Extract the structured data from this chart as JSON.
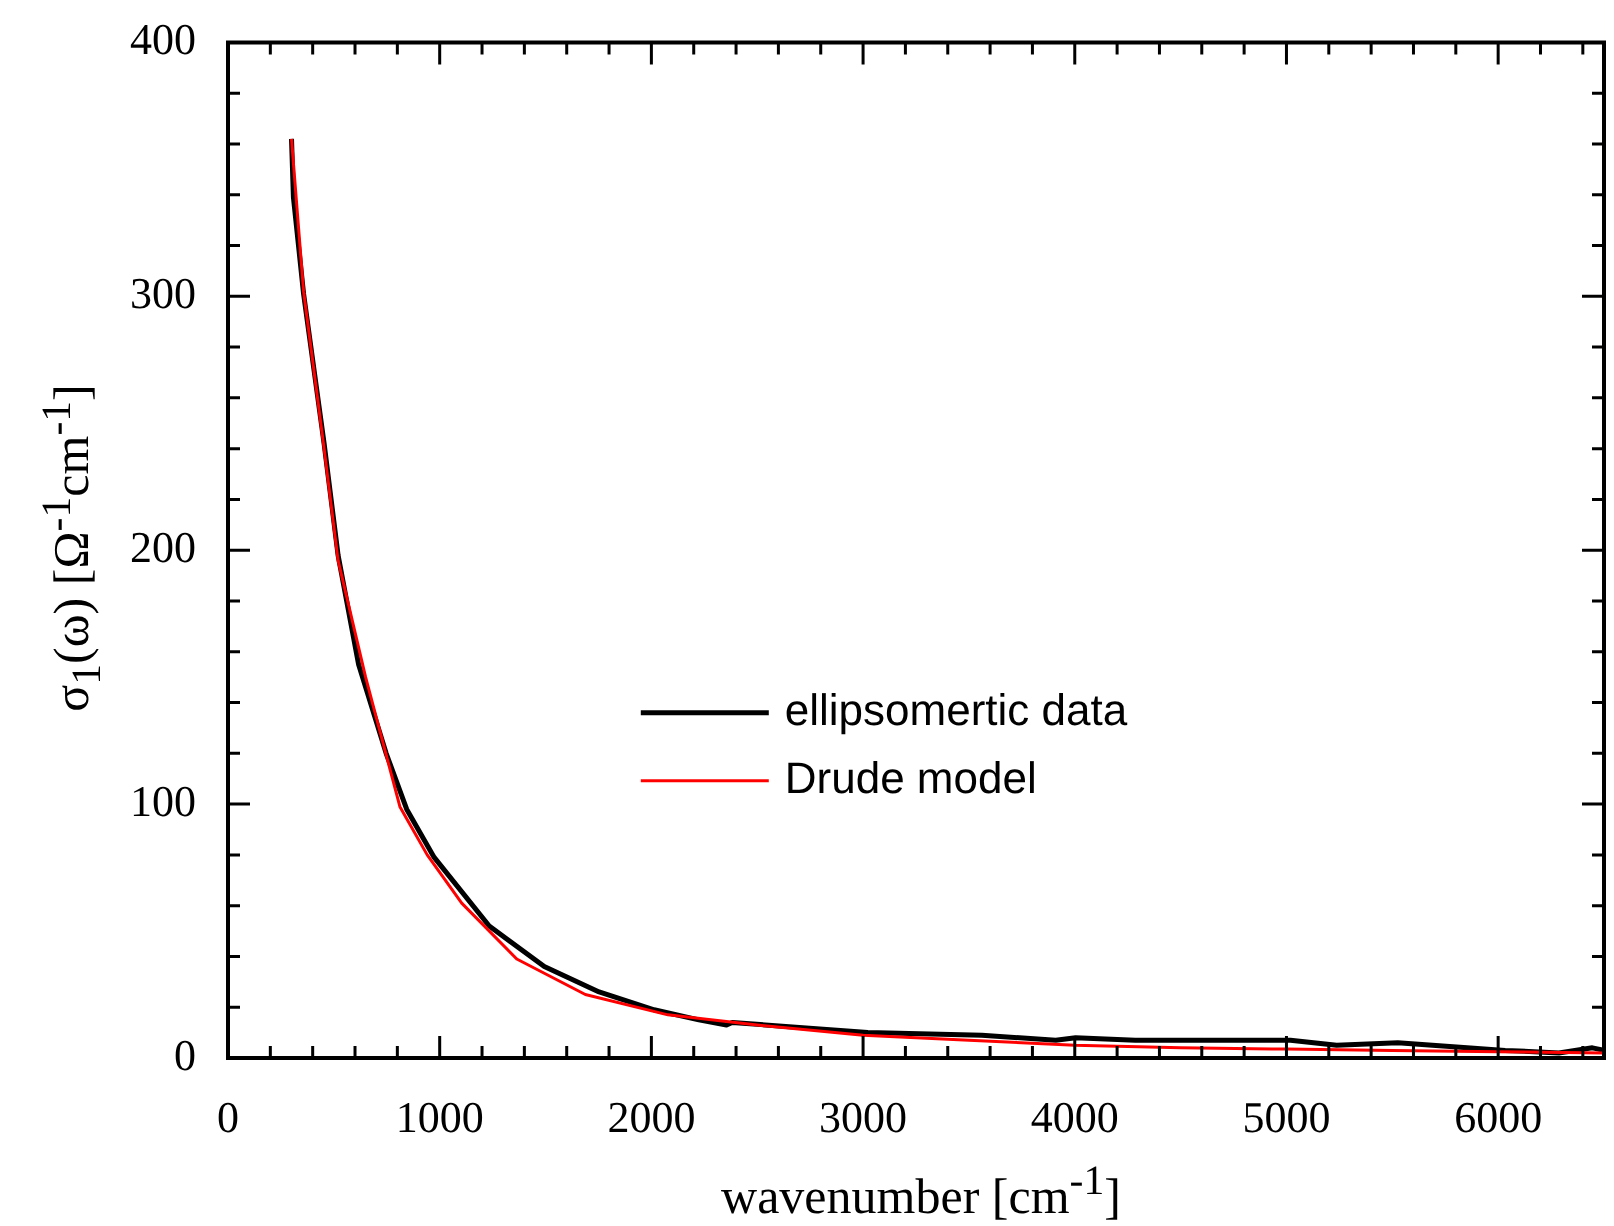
{
  "chart_data": {
    "type": "line",
    "xlabel": "wavenumber [cm$^{-1}$]",
    "ylabel": "σ$_{1}$(ω) [Ω$^{-1}$cm$^{-1}$]",
    "xlim": [
      0,
      6500
    ],
    "ylim": [
      0,
      400
    ],
    "xticks": [
      0,
      {
        "value": 200,
        "label": null
      },
      {
        "value": 400,
        "label": null
      },
      {
        "value": 600,
        "label": null
      },
      {
        "value": 800,
        "label": null
      },
      1000,
      {
        "value": 1200,
        "label": null
      },
      {
        "value": 1400,
        "label": null
      },
      {
        "value": 1600,
        "label": null
      },
      {
        "value": 1800,
        "label": null
      },
      2000,
      {
        "value": 2200,
        "label": null
      },
      {
        "value": 2400,
        "label": null
      },
      {
        "value": 2600,
        "label": null
      },
      {
        "value": 2800,
        "label": null
      },
      3000,
      {
        "value": 3200,
        "label": null
      },
      {
        "value": 3400,
        "label": null
      },
      {
        "value": 3600,
        "label": null
      },
      {
        "value": 3800,
        "label": null
      },
      4000,
      {
        "value": 4200,
        "label": null
      },
      {
        "value": 4400,
        "label": null
      },
      {
        "value": 4600,
        "label": null
      },
      {
        "value": 4800,
        "label": null
      },
      5000,
      {
        "value": 5200,
        "label": null
      },
      {
        "value": 5400,
        "label": null
      },
      {
        "value": 5600,
        "label": null
      },
      {
        "value": 5800,
        "label": null
      },
      6000,
      {
        "value": 6200,
        "label": null
      },
      {
        "value": 6400,
        "label": null
      }
    ],
    "yticks": [
      0,
      {
        "value": 20,
        "label": null
      },
      {
        "value": 40,
        "label": null
      },
      {
        "value": 60,
        "label": null
      },
      {
        "value": 80,
        "label": null
      },
      100,
      {
        "value": 120,
        "label": null
      },
      {
        "value": 140,
        "label": null
      },
      {
        "value": 160,
        "label": null
      },
      {
        "value": 180,
        "label": null
      },
      200,
      {
        "value": 220,
        "label": null
      },
      {
        "value": 240,
        "label": null
      },
      {
        "value": 260,
        "label": null
      },
      {
        "value": 280,
        "label": null
      },
      300,
      {
        "value": 320,
        "label": null
      },
      {
        "value": 340,
        "label": null
      },
      {
        "value": 360,
        "label": null
      },
      {
        "value": 380,
        "label": null
      },
      400
    ],
    "grid": false,
    "legend": "center",
    "marker": "none",
    "line_style": "solid",
    "series": [
      {
        "name": "ellipsomertic data",
        "color": "#000000",
        "x": [
          300,
          309,
          357,
          454,
          520,
          617,
          747,
          844,
          974,
          1234,
          1494,
          1753,
          2013,
          2224,
          2355,
          2382,
          3022,
          3561,
          3910,
          4004,
          4286,
          5019,
          5237,
          5526,
          6033,
          6287,
          6445,
          6500
        ],
        "values": [
          362,
          339,
          301,
          242,
          198,
          155,
          120,
          98,
          79,
          52,
          36,
          26,
          19,
          15,
          13,
          14,
          10,
          9,
          7,
          8,
          7,
          7,
          5,
          6,
          3,
          2,
          4,
          3
        ]
      },
      {
        "name": "Drude model",
        "color": "#ff0000",
        "x": [
          300,
          357,
          454,
          520,
          650,
          812,
          941,
          1104,
          1364,
          1688,
          2078,
          2500,
          3000,
          3500,
          4000,
          4500,
          5000,
          5500,
          6000,
          6500
        ],
        "values": [
          362,
          302,
          240,
          196,
          150,
          99,
          80,
          61,
          39,
          25,
          17,
          13,
          9,
          7,
          5,
          4,
          3.5,
          3,
          2.5,
          2
        ]
      }
    ]
  }
}
